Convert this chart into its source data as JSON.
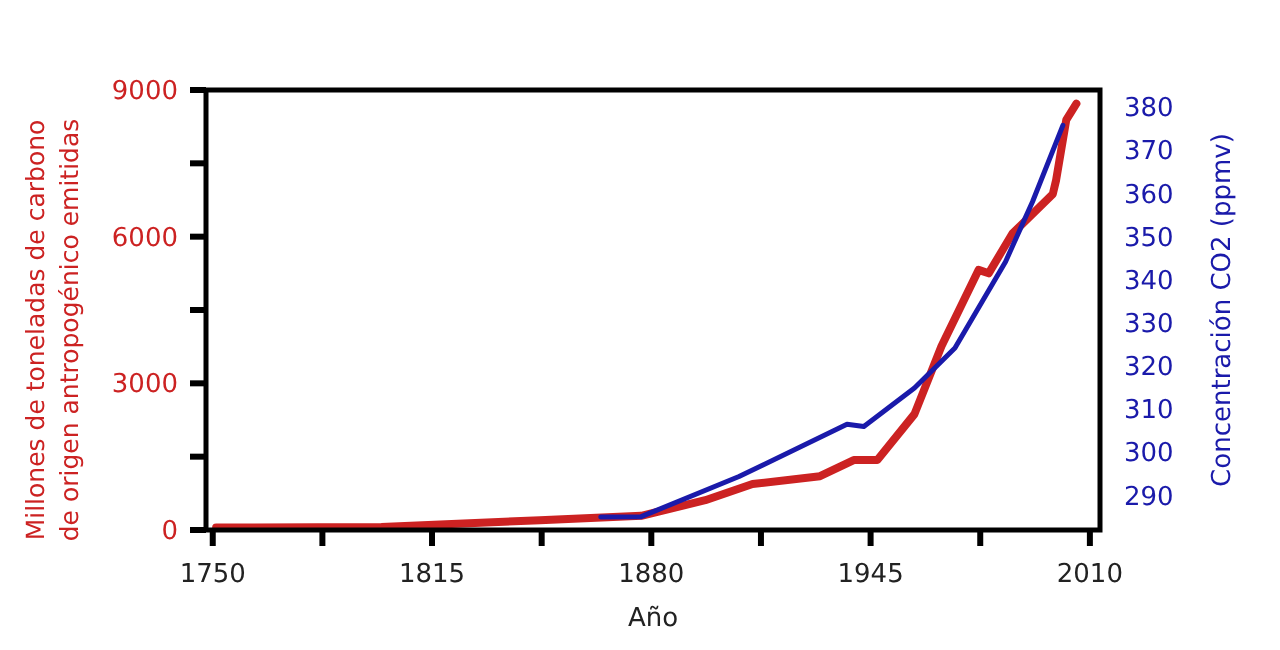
{
  "chart_data": {
    "type": "line",
    "xlabel": "Año",
    "ylabel": "Millones de toneladas de carbono de origen antropogénico emitidas",
    "y2label": "Concentración CO2 (ppmv)",
    "xlim": [
      1748,
      2013
    ],
    "xticks": [
      1750,
      {
        "value": 1782.5,
        "label": null
      },
      1815,
      {
        "value": 1847.5,
        "label": null
      },
      1880,
      {
        "value": 1912.5,
        "label": null
      },
      1945,
      {
        "value": 1977.5,
        "label": null
      },
      2010
    ],
    "ylim": [
      0,
      9000
    ],
    "yticks": [
      0,
      {
        "value": 1500,
        "label": null
      },
      3000,
      {
        "value": 4500,
        "label": null
      },
      6000,
      {
        "value": 7500,
        "label": null
      },
      9000
    ],
    "y2lim": [
      282,
      384
    ],
    "y2ticks": [
      290,
      300,
      310,
      320,
      330,
      340,
      350,
      360,
      370,
      380
    ],
    "grid": false,
    "marker": "none",
    "line_style": "solid",
    "series": [
      {
        "color": "#cc2222",
        "x": [
          1751,
          1800,
          1847,
          1877,
          1896,
          1910,
          1930,
          1940,
          1947,
          1958,
          1966,
          1977,
          1980,
          1987,
          1999,
          2000,
          2003,
          2006
        ],
        "values": [
          50,
          60,
          200,
          290,
          610,
          940,
          1100,
          1430,
          1430,
          2370,
          3760,
          5320,
          5250,
          6060,
          6870,
          7160,
          8390,
          8720
        ]
      },
      {
        "color": "#1a1aaa",
        "axis": "y2",
        "x": [
          1865,
          1877,
          1906,
          1938,
          1943,
          1958,
          1970,
          1985,
          1993,
          2002
        ],
        "values": [
          285,
          285.1,
          294.4,
          306.5,
          306,
          314.9,
          324.2,
          344.2,
          358.1,
          375.8
        ]
      }
    ]
  }
}
